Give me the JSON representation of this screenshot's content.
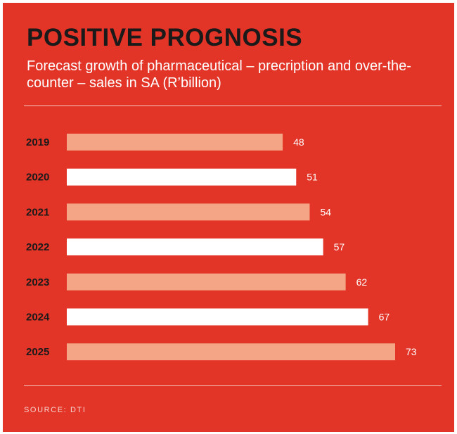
{
  "title": "POSITIVE PROGNOSIS",
  "subtitle": "Forecast growth of pharmaceutical – precription and over-the-counter – sales in SA (R’billion)",
  "source": "SOURCE: DTI",
  "colors": {
    "background": "#e23427",
    "bar_odd": "#f4a585",
    "bar_even": "#ffffff",
    "title_text": "#1a1a1a",
    "value_text": "#ffffff"
  },
  "chart_data": {
    "type": "bar",
    "orientation": "horizontal",
    "categories": [
      "2019",
      "2020",
      "2021",
      "2022",
      "2023",
      "2024",
      "2025"
    ],
    "values": [
      48,
      51,
      54,
      57,
      62,
      67,
      73
    ],
    "title": "POSITIVE PROGNOSIS",
    "subtitle": "Forecast growth of pharmaceutical – precription and over-the-counter – sales in SA (R’billion)",
    "xlabel": "",
    "ylabel": "",
    "xlim": [
      0,
      73
    ],
    "grid": false,
    "legend": "none",
    "data_labels": true
  }
}
